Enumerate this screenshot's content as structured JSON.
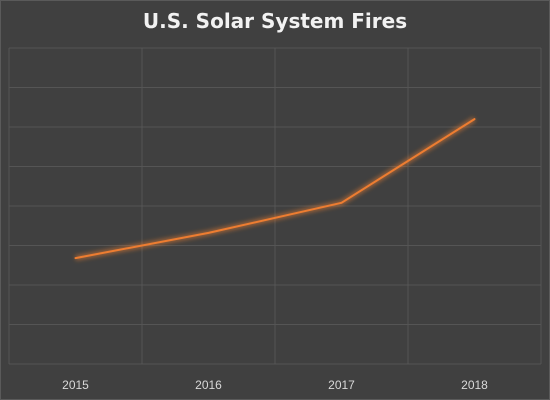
{
  "chart_data": {
    "type": "line",
    "title": "U.S. Solar System Fires",
    "xlabel": "",
    "ylabel": "",
    "categories": [
      "2015",
      "2016",
      "2017",
      "2018"
    ],
    "series": [
      {
        "values": [
          6.7,
          8.3,
          10.2,
          15.5
        ],
        "color": "#ed7d31"
      }
    ],
    "ylim": [
      0,
      20
    ],
    "y_gridline_step": 2.5,
    "y_tick_labels_shown": false,
    "grid": true,
    "legend": "none",
    "background_color": "#404040",
    "gridline_color": "#555555"
  }
}
